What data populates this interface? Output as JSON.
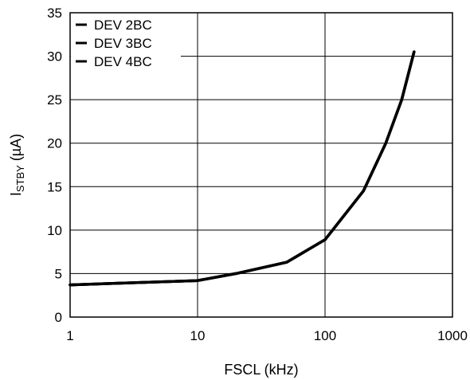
{
  "chart_data": {
    "type": "line",
    "title": "",
    "xlabel": "FSCL (kHz)",
    "ylabel_main": "I",
    "ylabel_sub": "STBY",
    "ylabel_unit": " (µA)",
    "x_scale": "log",
    "xlim": [
      1,
      1000
    ],
    "ylim": [
      0,
      35
    ],
    "x_ticks": [
      1,
      10,
      100,
      1000
    ],
    "x_tick_labels": [
      "1",
      "10",
      "100",
      "1000"
    ],
    "y_ticks": [
      0,
      5,
      10,
      15,
      20,
      25,
      30,
      35
    ],
    "y_tick_labels": [
      "0",
      "5",
      "10",
      "15",
      "20",
      "25",
      "30",
      "35"
    ],
    "grid": true,
    "legend_position": "top-left",
    "series": [
      {
        "name": "DEV 2BC",
        "x": [
          1,
          10,
          20,
          50,
          100,
          200,
          300,
          400,
          500
        ],
        "y": [
          3.7,
          4.2,
          5.0,
          6.3,
          8.9,
          14.5,
          20.0,
          25.0,
          30.5
        ]
      },
      {
        "name": "DEV 3BC",
        "x": [
          1,
          10,
          20,
          50,
          100,
          200,
          300,
          400,
          500
        ],
        "y": [
          3.7,
          4.2,
          5.0,
          6.3,
          8.9,
          14.5,
          20.0,
          25.0,
          30.5
        ]
      },
      {
        "name": "DEV 4BC",
        "x": [
          1,
          10,
          20,
          50,
          100,
          200,
          300,
          400,
          500
        ],
        "y": [
          3.7,
          4.2,
          5.0,
          6.3,
          8.9,
          14.5,
          20.0,
          25.0,
          30.5
        ]
      }
    ],
    "line_color": "#000000"
  }
}
